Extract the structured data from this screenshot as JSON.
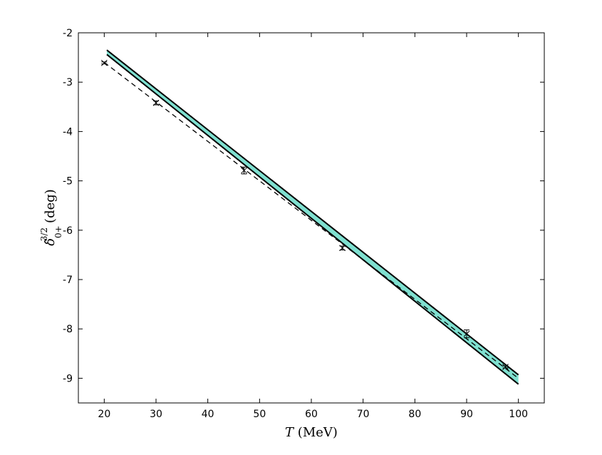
{
  "chart_data": {
    "type": "line",
    "xlabel": {
      "symbol": "T",
      "unit": "(MeV)"
    },
    "ylabel": {
      "symbol": "δ̃",
      "sup": "3/2",
      "sub": "0+",
      "unit": "(deg)"
    },
    "xlim": [
      15,
      105
    ],
    "xticks": [
      20,
      30,
      40,
      50,
      60,
      70,
      80,
      90,
      100
    ],
    "ylim": [
      -9.5,
      -2
    ],
    "yticks": [
      -2,
      -3,
      -4,
      -5,
      -6,
      -7,
      -8,
      -9
    ],
    "series": [
      {
        "type": "band",
        "color": "#7fe0d0",
        "x": [
          20.5,
          100
        ],
        "lower": [
          -2.44,
          -9.12
        ],
        "upper": [
          -2.35,
          -8.93
        ]
      },
      {
        "type": "line",
        "style": "dashed",
        "color": "#000000",
        "x": [
          20,
          100
        ],
        "values": [
          -2.6,
          -9.0
        ]
      },
      {
        "type": "errorbar",
        "color": "#000000",
        "x": [
          20,
          30,
          47,
          66,
          90,
          97.5
        ],
        "values": [
          -2.61,
          -3.42,
          -4.79,
          -6.36,
          -8.1,
          -8.77
        ],
        "errors": [
          0.02,
          0.04,
          0.07,
          0.04,
          0.08,
          0.02
        ]
      }
    ]
  }
}
